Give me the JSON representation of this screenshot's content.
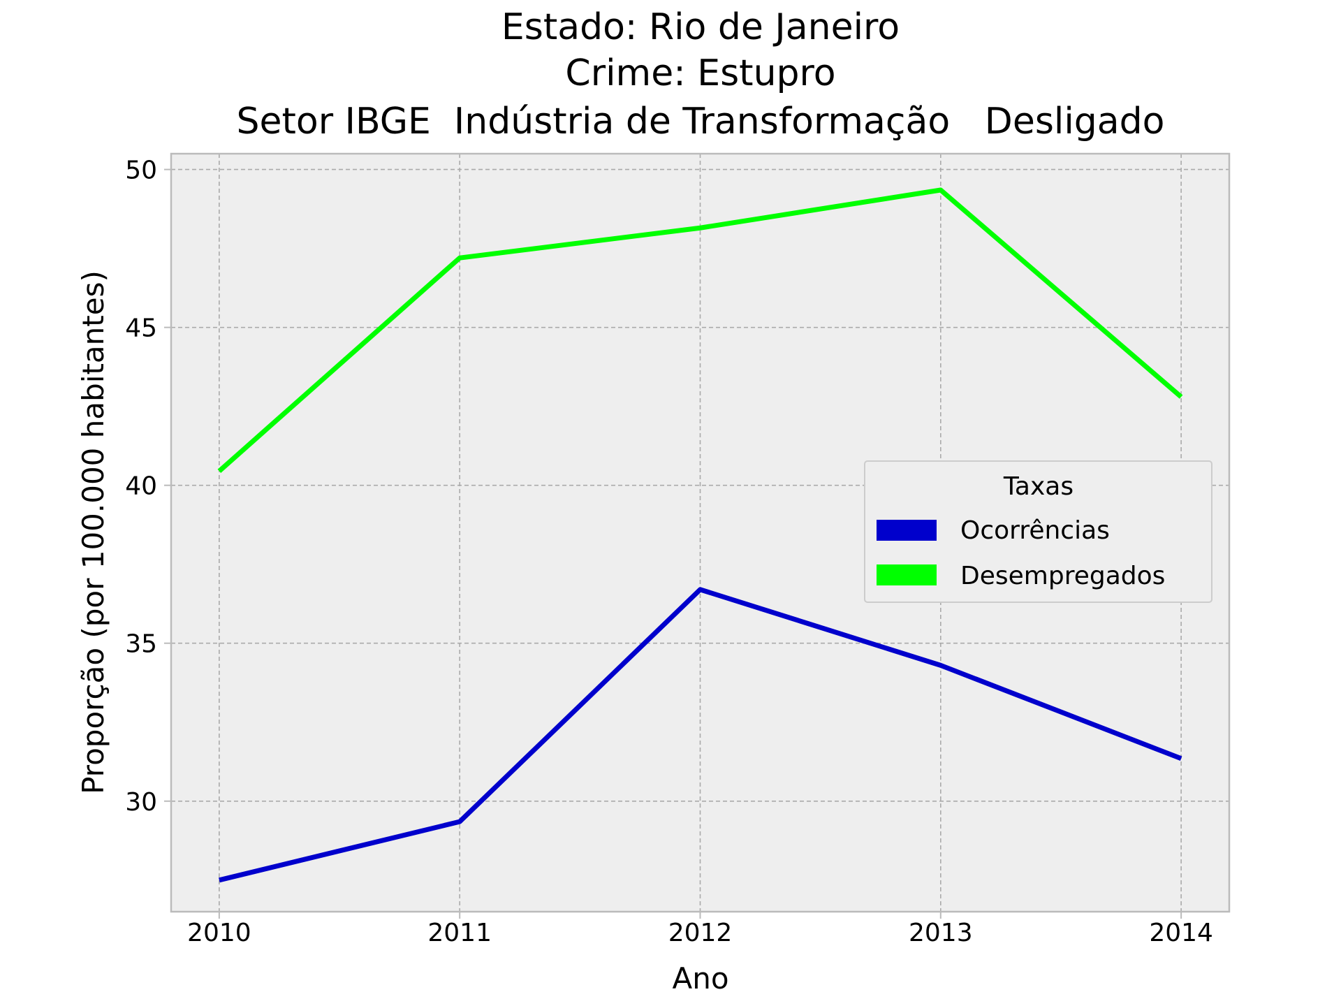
{
  "chart_data": {
    "type": "line",
    "title_lines": [
      "Estado: Rio de Janeiro",
      "Crime: Estupro",
      "Setor IBGE  Indústria de Transformação   Desligado"
    ],
    "xlabel": "Ano",
    "ylabel": "Proporção (por 100.000 habitantes)",
    "x": [
      2010,
      2011,
      2012,
      2013,
      2014
    ],
    "xlim": [
      2009.8,
      2014.2
    ],
    "ylim": [
      26.5,
      50.5
    ],
    "xticks": [
      "2010",
      "2011",
      "2012",
      "2013",
      "2014"
    ],
    "yticks": [
      30,
      35,
      40,
      45,
      50
    ],
    "ytick_labels": [
      "30",
      "35",
      "40",
      "45",
      "50"
    ],
    "grid": true,
    "legend": {
      "title": "Taxas",
      "placement": "center-right"
    },
    "series": [
      {
        "name": "Ocorrências",
        "color": "#0000cc",
        "values": [
          27.5,
          29.35,
          36.7,
          34.3,
          31.35
        ]
      },
      {
        "name": "Desempregados",
        "color": "#00ff00",
        "values": [
          40.45,
          47.2,
          48.15,
          49.35,
          42.8
        ]
      }
    ],
    "colors": {
      "plot_background": "#eeeeee",
      "grid": "#aaaaaa",
      "spine": "#bbbbbb"
    }
  }
}
